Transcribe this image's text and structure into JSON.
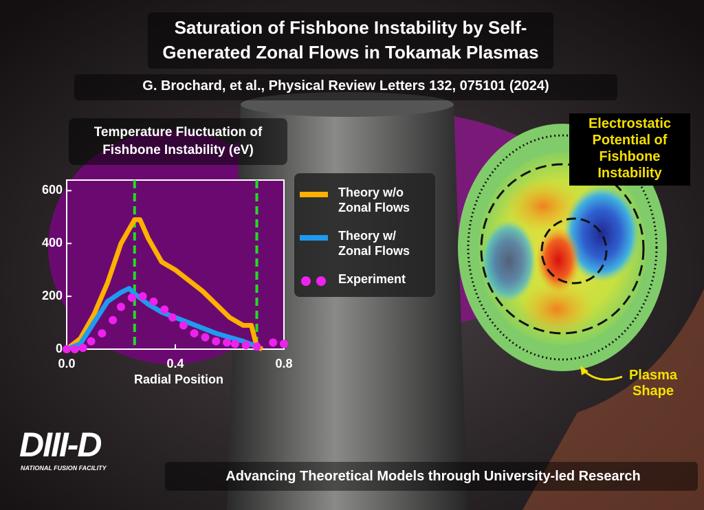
{
  "header": {
    "title": "Saturation of Fishbone Instability by Self-Generated Zonal Flows in Tokamak Plasmas",
    "citation": "G. Brochard, et al., Physical Review Letters 132, 075101 (2024)"
  },
  "diagram": {
    "label": "Electrostatic Potential of Fishbone Instability",
    "shape_label": "Plasma Shape"
  },
  "logo": {
    "name": "DIII-D",
    "subtitle": "NATIONAL FUSION FACILITY"
  },
  "footer": "Advancing Theoretical Models through University-led Research",
  "chart_data": {
    "type": "line",
    "title": "Temperature Fluctuation of Fishbone Instability (eV)",
    "x_label": "Radial Position",
    "xlim": [
      0,
      0.8
    ],
    "xticks": [
      {
        "value": 0,
        "label": "0.0"
      },
      0.4,
      0.8
    ],
    "ylim": [
      0,
      640
    ],
    "yticks": [
      0,
      200,
      400,
      600
    ],
    "grid": false,
    "vlines": [
      0.25,
      0.7
    ],
    "vline_color": "#22dd22",
    "series": [
      {
        "name": "Theory w/o Zonal Flows",
        "color": "#ffb000",
        "marker": false,
        "x": [
          0,
          0.05,
          0.1,
          0.15,
          0.2,
          0.25,
          0.27,
          0.3,
          0.35,
          0.4,
          0.45,
          0.5,
          0.55,
          0.6,
          0.65,
          0.68,
          0.7,
          0.72
        ],
        "values": [
          0,
          40,
          130,
          250,
          400,
          490,
          490,
          420,
          330,
          300,
          260,
          220,
          170,
          120,
          90,
          90,
          10,
          0
        ]
      },
      {
        "name": "Theory w/ Zonal Flows",
        "color": "#1e9bf0",
        "marker": false,
        "x": [
          0,
          0.05,
          0.1,
          0.15,
          0.2,
          0.23,
          0.25,
          0.3,
          0.35,
          0.4,
          0.45,
          0.5,
          0.55,
          0.6,
          0.65,
          0.7
        ],
        "values": [
          0,
          20,
          100,
          180,
          215,
          230,
          210,
          170,
          140,
          120,
          100,
          80,
          60,
          45,
          30,
          10
        ]
      },
      {
        "name": "Experiment",
        "color": "#ee22ee",
        "marker": true,
        "x": [
          0,
          0.03,
          0.06,
          0.09,
          0.13,
          0.17,
          0.2,
          0.24,
          0.28,
          0.32,
          0.36,
          0.39,
          0.43,
          0.47,
          0.51,
          0.55,
          0.59,
          0.62,
          0.66,
          0.7,
          0.76,
          0.8
        ],
        "values": [
          0,
          0,
          5,
          30,
          60,
          110,
          160,
          195,
          200,
          180,
          150,
          120,
          90,
          60,
          45,
          30,
          25,
          20,
          15,
          10,
          25,
          20
        ]
      }
    ]
  }
}
